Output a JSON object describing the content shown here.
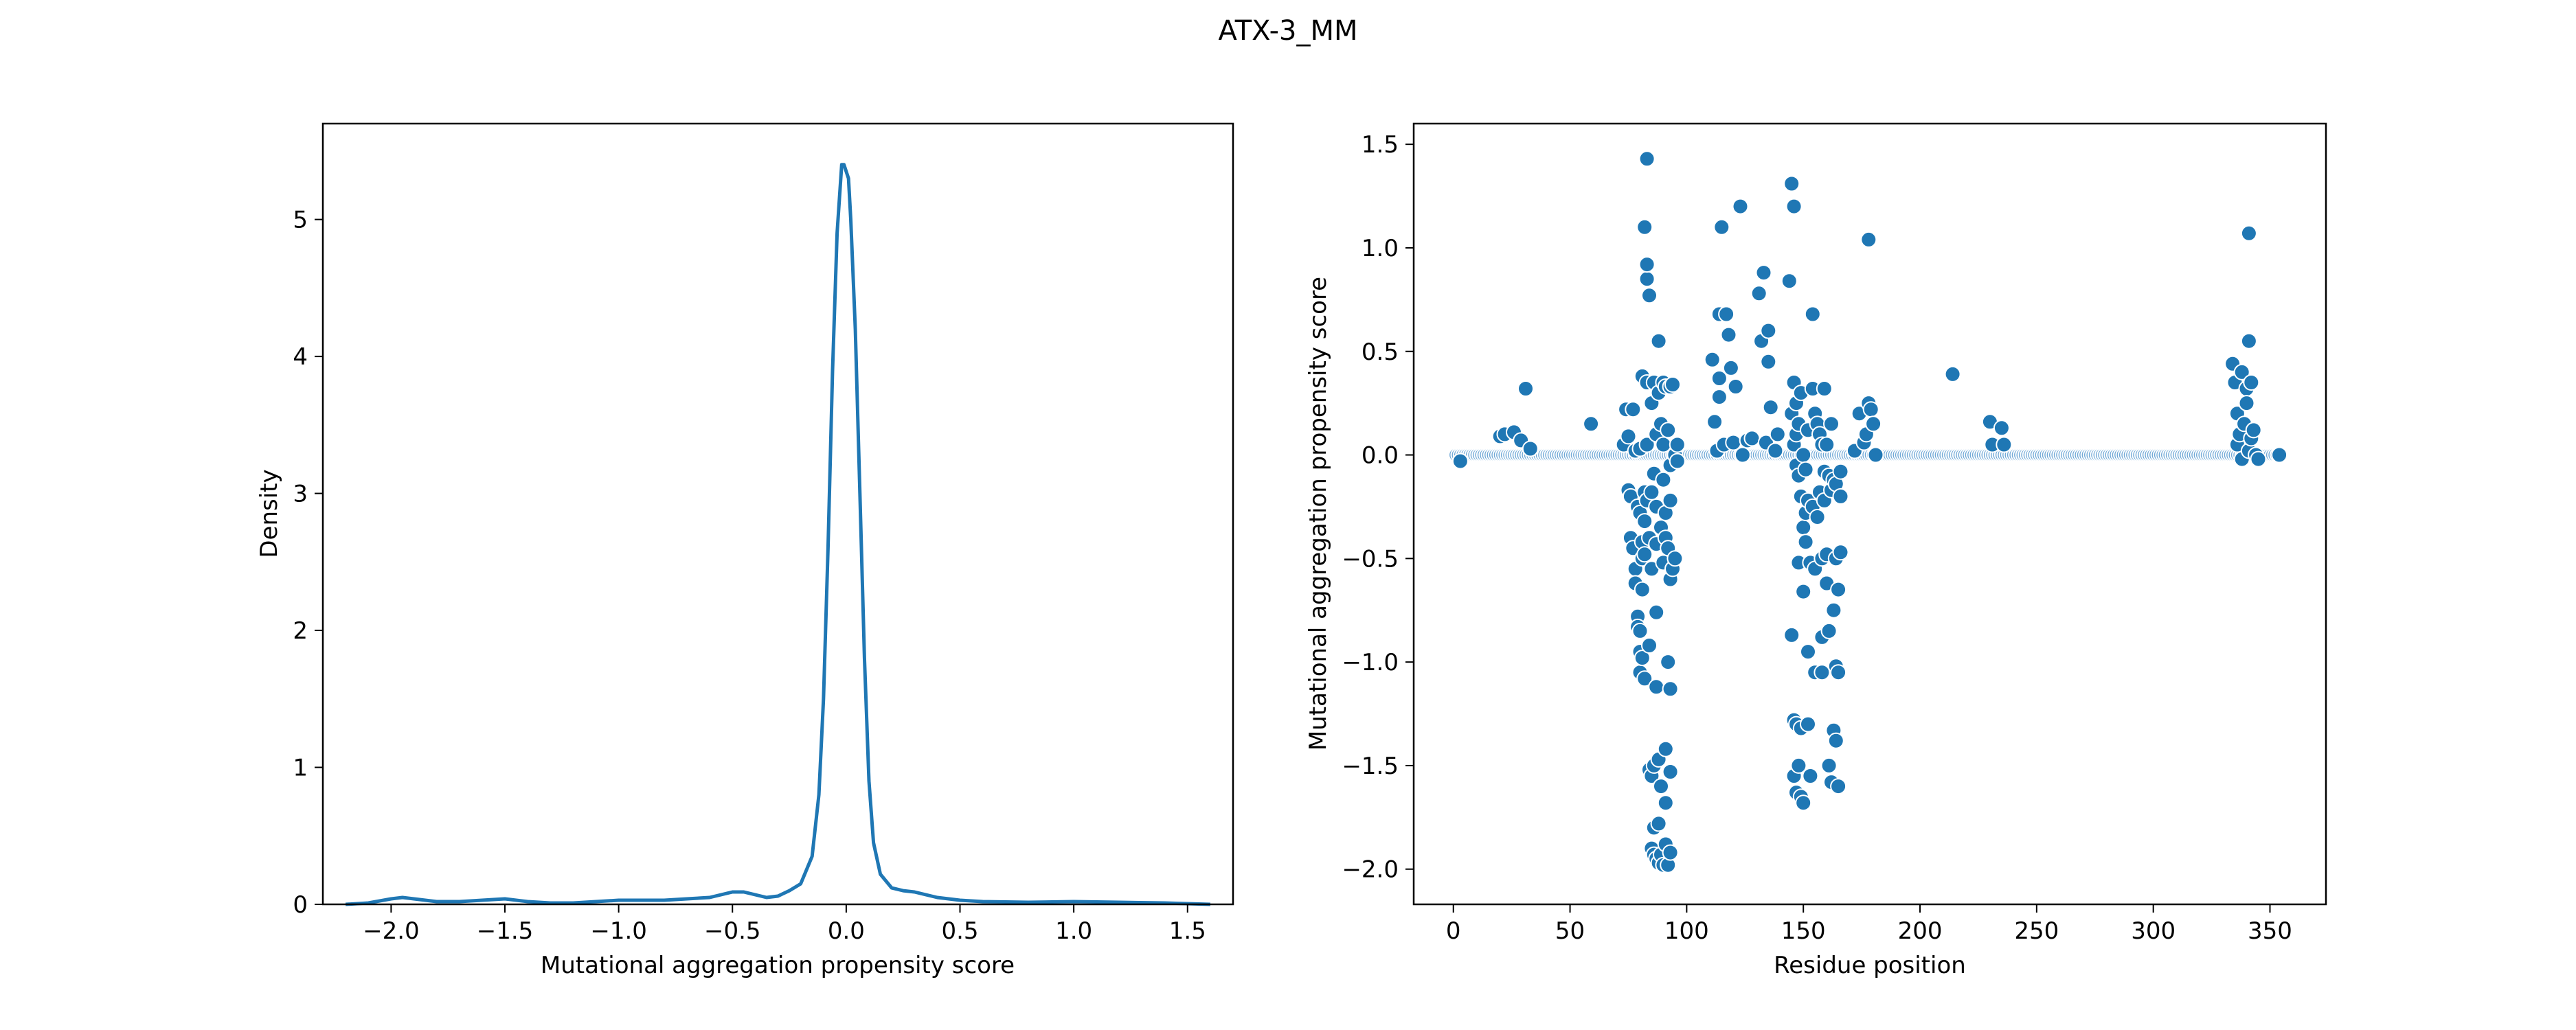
{
  "title": "ATX-3_MM",
  "chart_data": [
    {
      "type": "line",
      "subtype": "kde",
      "xlabel": "Mutational aggregation propensity score",
      "ylabel": "Density",
      "xlim": [
        -2.3,
        1.7
      ],
      "ylim": [
        0,
        5.7
      ],
      "xticks": [
        -2.0,
        -1.5,
        -1.0,
        -0.5,
        0.0,
        0.5,
        1.0,
        1.5
      ],
      "xtick_labels": [
        "−2.0",
        "−1.5",
        "−1.0",
        "−0.5",
        "0.0",
        "0.5",
        "1.0",
        "1.5"
      ],
      "yticks": [
        0,
        1,
        2,
        3,
        4,
        5
      ],
      "ytick_labels": [
        "0",
        "1",
        "2",
        "3",
        "4",
        "5"
      ],
      "color": "#1f77b4",
      "x": [
        -2.2,
        -2.1,
        -2.0,
        -1.95,
        -1.9,
        -1.8,
        -1.7,
        -1.6,
        -1.5,
        -1.4,
        -1.3,
        -1.2,
        -1.1,
        -1.0,
        -0.9,
        -0.8,
        -0.7,
        -0.6,
        -0.5,
        -0.45,
        -0.4,
        -0.35,
        -0.3,
        -0.25,
        -0.2,
        -0.15,
        -0.12,
        -0.1,
        -0.08,
        -0.06,
        -0.04,
        -0.02,
        -0.01,
        0.0,
        0.01,
        0.02,
        0.04,
        0.06,
        0.08,
        0.1,
        0.12,
        0.15,
        0.2,
        0.25,
        0.3,
        0.35,
        0.4,
        0.5,
        0.6,
        0.8,
        1.0,
        1.2,
        1.4,
        1.6
      ],
      "y": [
        0.0,
        0.01,
        0.04,
        0.05,
        0.04,
        0.02,
        0.02,
        0.03,
        0.04,
        0.02,
        0.01,
        0.01,
        0.02,
        0.03,
        0.03,
        0.03,
        0.04,
        0.05,
        0.09,
        0.09,
        0.07,
        0.05,
        0.06,
        0.1,
        0.15,
        0.35,
        0.8,
        1.5,
        2.6,
        3.9,
        4.9,
        5.4,
        5.4,
        5.35,
        5.3,
        5.0,
        4.2,
        3.0,
        1.8,
        0.9,
        0.45,
        0.22,
        0.12,
        0.1,
        0.09,
        0.07,
        0.05,
        0.03,
        0.02,
        0.015,
        0.02,
        0.015,
        0.01,
        0.0
      ]
    },
    {
      "type": "scatter",
      "xlabel": "Residue position",
      "ylabel": "Mutational aggregation propensity score",
      "xlim": [
        -17,
        374
      ],
      "ylim": [
        -2.17,
        1.6
      ],
      "xticks": [
        0,
        50,
        100,
        150,
        200,
        250,
        300,
        350
      ],
      "xtick_labels": [
        "0",
        "50",
        "100",
        "150",
        "200",
        "250",
        "300",
        "350"
      ],
      "yticks": [
        -2.0,
        -1.5,
        -1.0,
        -0.5,
        0.0,
        0.5,
        1.0,
        1.5
      ],
      "ytick_labels": [
        "−2.0",
        "−1.5",
        "−1.0",
        "−0.5",
        "0.0",
        "0.5",
        "1.0",
        "1.5"
      ],
      "color": "#1f77b4",
      "baseline": {
        "x_start": 1,
        "x_end": 354,
        "step": 1,
        "y": 0.0,
        "color": "#6fa8d6"
      },
      "points": [
        [
          3,
          -0.03
        ],
        [
          20,
          0.09
        ],
        [
          22,
          0.1
        ],
        [
          26,
          0.11
        ],
        [
          29,
          0.07
        ],
        [
          31,
          0.32
        ],
        [
          33,
          0.03
        ],
        [
          59,
          0.15
        ],
        [
          73,
          0.05
        ],
        [
          74,
          0.22
        ],
        [
          75,
          0.09
        ],
        [
          75,
          -0.17
        ],
        [
          76,
          -0.4
        ],
        [
          76,
          -0.2
        ],
        [
          77,
          0.22
        ],
        [
          77,
          -0.45
        ],
        [
          78,
          0.02
        ],
        [
          78,
          -0.55
        ],
        [
          78,
          -0.62
        ],
        [
          79,
          -0.25
        ],
        [
          79,
          -0.78
        ],
        [
          79,
          -0.83
        ],
        [
          80,
          0.03
        ],
        [
          80,
          -0.28
        ],
        [
          80,
          -0.85
        ],
        [
          80,
          -0.95
        ],
        [
          80,
          -1.05
        ],
        [
          81,
          0.38
        ],
        [
          81,
          -0.42
        ],
        [
          81,
          -0.5
        ],
        [
          81,
          -0.65
        ],
        [
          81,
          -0.98
        ],
        [
          82,
          1.1
        ],
        [
          82,
          -0.18
        ],
        [
          82,
          -0.32
        ],
        [
          82,
          -0.48
        ],
        [
          82,
          -1.08
        ],
        [
          83,
          0.85
        ],
        [
          83,
          0.92
        ],
        [
          83,
          1.43
        ],
        [
          83,
          0.35
        ],
        [
          83,
          0.05
        ],
        [
          83,
          -0.22
        ],
        [
          84,
          0.77
        ],
        [
          84,
          -0.4
        ],
        [
          84,
          -0.92
        ],
        [
          84,
          -1.52
        ],
        [
          85,
          0.25
        ],
        [
          85,
          -0.18
        ],
        [
          85,
          -0.55
        ],
        [
          85,
          -1.55
        ],
        [
          85,
          -1.9
        ],
        [
          86,
          0.35
        ],
        [
          86,
          -0.09
        ],
        [
          86,
          -1.5
        ],
        [
          86,
          -1.8
        ],
        [
          86,
          -1.93
        ],
        [
          87,
          0.1
        ],
        [
          87,
          -0.25
        ],
        [
          87,
          -0.43
        ],
        [
          87,
          -0.76
        ],
        [
          87,
          -1.12
        ],
        [
          87,
          -1.95
        ],
        [
          88,
          0.55
        ],
        [
          88,
          0.3
        ],
        [
          88,
          -1.97
        ],
        [
          88,
          -1.78
        ],
        [
          88,
          -1.47
        ],
        [
          89,
          0.15
        ],
        [
          89,
          -0.35
        ],
        [
          89,
          -1.6
        ],
        [
          89,
          -1.93
        ],
        [
          90,
          0.35
        ],
        [
          90,
          0.05
        ],
        [
          90,
          -0.12
        ],
        [
          90,
          -0.52
        ],
        [
          90,
          -1.98
        ],
        [
          91,
          0.33
        ],
        [
          91,
          -0.28
        ],
        [
          91,
          -0.4
        ],
        [
          91,
          -1.68
        ],
        [
          91,
          -1.42
        ],
        [
          91,
          -1.88
        ],
        [
          92,
          0.12
        ],
        [
          92,
          -0.45
        ],
        [
          92,
          -1.0
        ],
        [
          92,
          -1.98
        ],
        [
          93,
          0.33
        ],
        [
          93,
          -0.05
        ],
        [
          93,
          -0.22
        ],
        [
          93,
          -0.6
        ],
        [
          93,
          -1.13
        ],
        [
          93,
          -1.53
        ],
        [
          93,
          -1.92
        ],
        [
          94,
          0.34
        ],
        [
          94,
          -0.55
        ],
        [
          95,
          0.0
        ],
        [
          95,
          -0.5
        ],
        [
          96,
          0.05
        ],
        [
          96,
          -0.03
        ],
        [
          111,
          0.46
        ],
        [
          112,
          0.16
        ],
        [
          113,
          0.02
        ],
        [
          114,
          0.37
        ],
        [
          114,
          0.28
        ],
        [
          114,
          0.68
        ],
        [
          115,
          1.1
        ],
        [
          116,
          0.05
        ],
        [
          117,
          0.68
        ],
        [
          118,
          0.58
        ],
        [
          119,
          0.42
        ],
        [
          120,
          0.06
        ],
        [
          121,
          0.33
        ],
        [
          123,
          1.2
        ],
        [
          124,
          0.0
        ],
        [
          126,
          0.07
        ],
        [
          128,
          0.08
        ],
        [
          131,
          0.78
        ],
        [
          132,
          0.55
        ],
        [
          133,
          0.88
        ],
        [
          134,
          0.06
        ],
        [
          135,
          0.6
        ],
        [
          135,
          0.45
        ],
        [
          136,
          0.23
        ],
        [
          138,
          0.02
        ],
        [
          139,
          0.1
        ],
        [
          144,
          0.84
        ],
        [
          145,
          1.31
        ],
        [
          145,
          0.2
        ],
        [
          145,
          -0.87
        ],
        [
          146,
          1.2
        ],
        [
          146,
          0.35
        ],
        [
          146,
          0.05
        ],
        [
          146,
          -1.28
        ],
        [
          146,
          -1.55
        ],
        [
          147,
          0.25
        ],
        [
          147,
          0.1
        ],
        [
          147,
          -0.05
        ],
        [
          147,
          -1.3
        ],
        [
          147,
          -1.63
        ],
        [
          148,
          0.15
        ],
        [
          148,
          -0.1
        ],
        [
          148,
          -0.52
        ],
        [
          148,
          -1.5
        ],
        [
          149,
          0.3
        ],
        [
          149,
          -0.2
        ],
        [
          149,
          -1.32
        ],
        [
          149,
          -1.65
        ],
        [
          150,
          0.0
        ],
        [
          150,
          -0.35
        ],
        [
          150,
          -0.66
        ],
        [
          150,
          -1.68
        ],
        [
          151,
          -0.07
        ],
        [
          151,
          -0.28
        ],
        [
          151,
          -0.42
        ],
        [
          152,
          0.12
        ],
        [
          152,
          -0.22
        ],
        [
          152,
          -0.95
        ],
        [
          152,
          -1.3
        ],
        [
          153,
          -0.52
        ],
        [
          153,
          -1.55
        ],
        [
          154,
          0.68
        ],
        [
          154,
          0.32
        ],
        [
          154,
          -0.25
        ],
        [
          155,
          0.2
        ],
        [
          155,
          -1.05
        ],
        [
          155,
          -0.55
        ],
        [
          156,
          0.15
        ],
        [
          156,
          -0.3
        ],
        [
          157,
          0.1
        ],
        [
          157,
          -0.18
        ],
        [
          158,
          0.05
        ],
        [
          158,
          -0.5
        ],
        [
          158,
          -0.88
        ],
        [
          158,
          -1.05
        ],
        [
          159,
          0.32
        ],
        [
          159,
          -0.08
        ],
        [
          159,
          -0.22
        ],
        [
          160,
          0.05
        ],
        [
          160,
          -0.48
        ],
        [
          160,
          -0.62
        ],
        [
          161,
          -0.1
        ],
        [
          161,
          -0.85
        ],
        [
          161,
          -1.5
        ],
        [
          162,
          0.15
        ],
        [
          162,
          -0.17
        ],
        [
          162,
          -1.58
        ],
        [
          163,
          -0.12
        ],
        [
          163,
          -0.75
        ],
        [
          163,
          -1.33
        ],
        [
          164,
          -0.14
        ],
        [
          164,
          -0.5
        ],
        [
          164,
          -1.02
        ],
        [
          164,
          -1.38
        ],
        [
          165,
          -0.65
        ],
        [
          165,
          -1.05
        ],
        [
          165,
          -1.6
        ],
        [
          166,
          -0.2
        ],
        [
          166,
          -0.47
        ],
        [
          166,
          -0.08
        ],
        [
          172,
          0.02
        ],
        [
          174,
          0.2
        ],
        [
          176,
          0.06
        ],
        [
          177,
          0.1
        ],
        [
          178,
          1.04
        ],
        [
          178,
          0.25
        ],
        [
          179,
          0.22
        ],
        [
          180,
          0.15
        ],
        [
          181,
          0.0
        ],
        [
          214,
          0.39
        ],
        [
          230,
          0.16
        ],
        [
          231,
          0.05
        ],
        [
          235,
          0.13
        ],
        [
          236,
          0.05
        ],
        [
          334,
          0.44
        ],
        [
          335,
          0.35
        ],
        [
          336,
          0.2
        ],
        [
          336,
          0.05
        ],
        [
          337,
          0.1
        ],
        [
          338,
          0.4
        ],
        [
          338,
          -0.02
        ],
        [
          339,
          0.15
        ],
        [
          340,
          0.32
        ],
        [
          340,
          0.25
        ],
        [
          341,
          1.07
        ],
        [
          341,
          0.55
        ],
        [
          341,
          0.02
        ],
        [
          342,
          0.35
        ],
        [
          342,
          0.08
        ],
        [
          343,
          0.12
        ],
        [
          344,
          0.0
        ],
        [
          345,
          -0.02
        ],
        [
          354,
          0.0
        ]
      ]
    }
  ]
}
